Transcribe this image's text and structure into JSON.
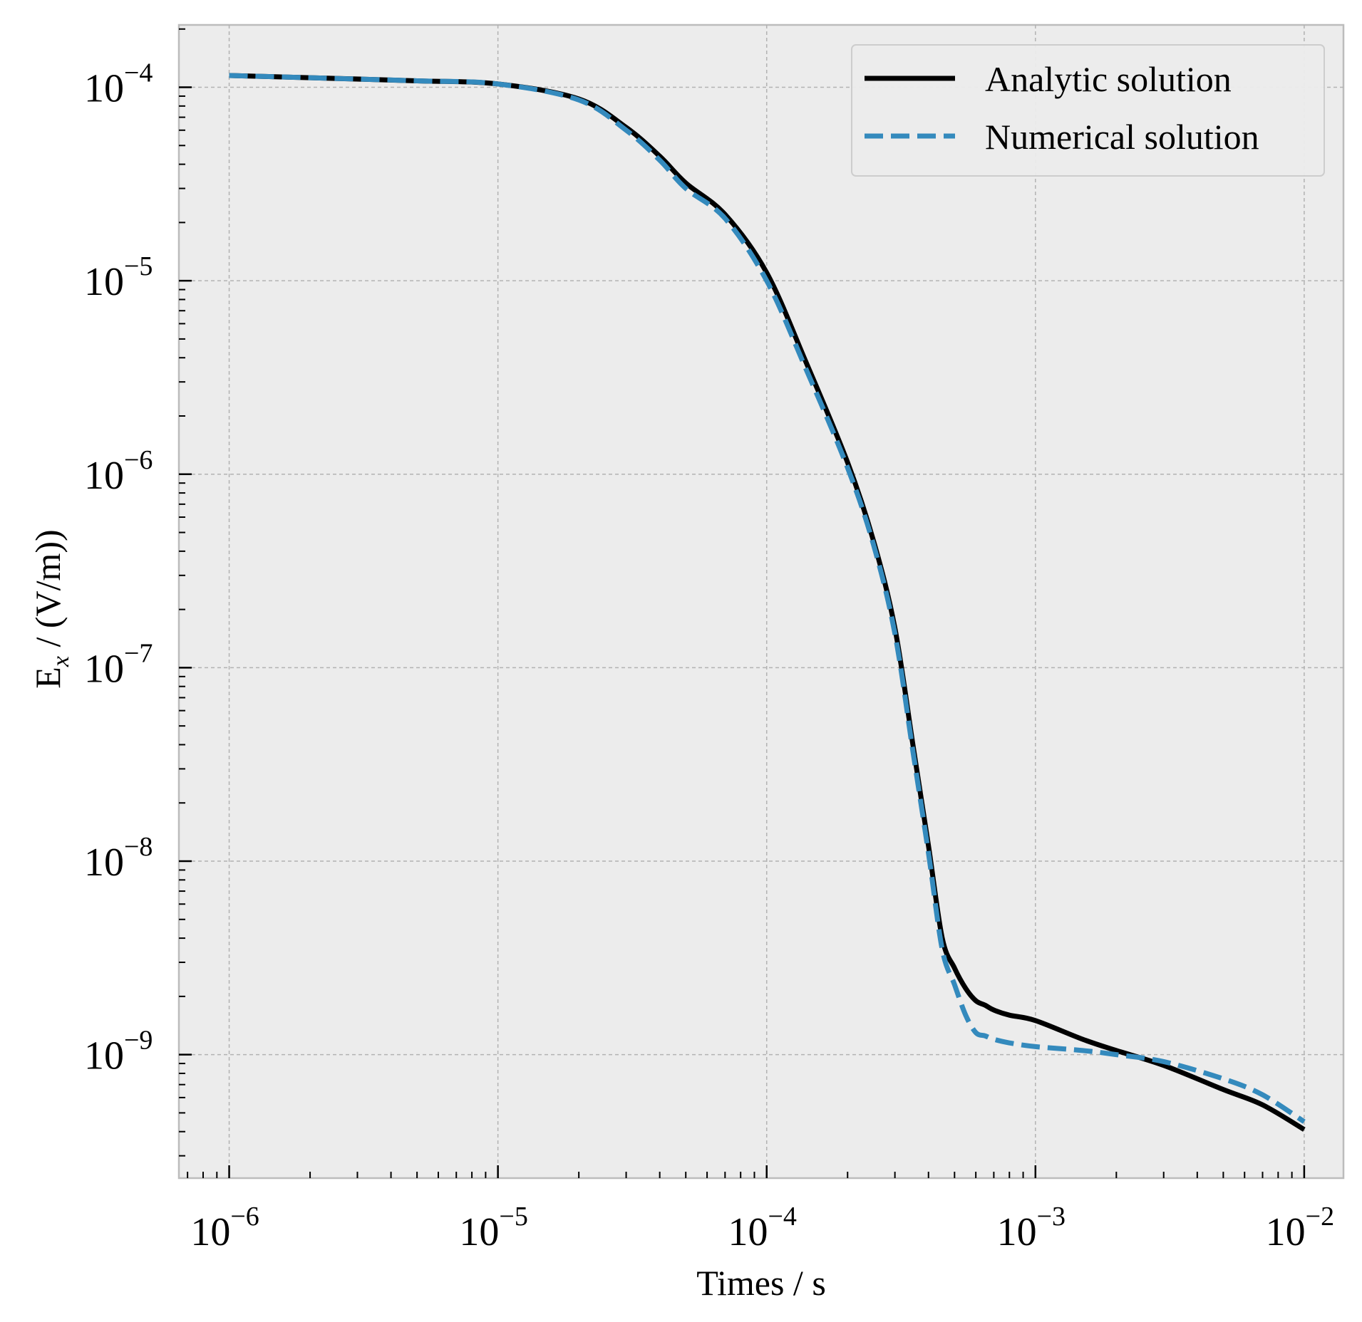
{
  "chart_data": {
    "type": "line",
    "xscale": "log",
    "yscale": "log",
    "xlim": [
      6.5e-07,
      0.014
    ],
    "ylim": [
      2.3e-10,
      0.00021
    ],
    "grid": true,
    "legend_position": "top-right",
    "xlabel_text": "Times / s",
    "ylabel_parts": {
      "main": "E",
      "sub": "x",
      "rest": " / (V/m))"
    },
    "x_ticks": [
      {
        "value": 1e-06,
        "base": "10",
        "exp": "−6"
      },
      {
        "value": 1e-05,
        "base": "10",
        "exp": "−5"
      },
      {
        "value": 0.0001,
        "base": "10",
        "exp": "−4"
      },
      {
        "value": 0.001,
        "base": "10",
        "exp": "−3"
      },
      {
        "value": 0.01,
        "base": "10",
        "exp": "−2"
      }
    ],
    "y_ticks": [
      {
        "value": 1e-09,
        "base": "10",
        "exp": "−9"
      },
      {
        "value": 1e-08,
        "base": "10",
        "exp": "−8"
      },
      {
        "value": 1e-07,
        "base": "10",
        "exp": "−7"
      },
      {
        "value": 1e-06,
        "base": "10",
        "exp": "−6"
      },
      {
        "value": 1e-05,
        "base": "10",
        "exp": "−5"
      },
      {
        "value": 0.0001,
        "base": "10",
        "exp": "−4"
      }
    ],
    "series": [
      {
        "name": "Analytic solution",
        "color": "#000000",
        "style": "solid",
        "x": [
          1e-06,
          2e-06,
          5e-06,
          1e-05,
          2e-05,
          3e-05,
          4e-05,
          5e-05,
          7e-05,
          0.0001,
          0.00014,
          0.0002,
          0.00025,
          0.0003,
          0.00035,
          0.0004,
          0.00045,
          0.0005,
          0.00055,
          0.0006,
          0.00065,
          0.0007,
          0.0008,
          0.001,
          0.0015,
          0.002,
          0.003,
          0.005,
          0.007,
          0.01
        ],
        "y": [
          0.000115,
          0.000112,
          0.000108,
          0.000104,
          8.7e-05,
          6.2e-05,
          4.4e-05,
          3.2e-05,
          2.2e-05,
          1.1e-05,
          3.8e-06,
          1.15e-06,
          4.5e-07,
          1.6e-07,
          4e-08,
          1.2e-08,
          4e-09,
          2.8e-09,
          2.2e-09,
          1.9e-09,
          1.8e-09,
          1.7e-09,
          1.6e-09,
          1.5e-09,
          1.2e-09,
          1.05e-09,
          8.8e-10,
          6.6e-10,
          5.5e-10,
          4.1e-10
        ]
      },
      {
        "name": "Numerical solution",
        "color": "#348ABD",
        "style": "dashed",
        "x": [
          1e-06,
          2e-06,
          5e-06,
          1e-05,
          2e-05,
          3e-05,
          4e-05,
          5e-05,
          7e-05,
          0.0001,
          0.00014,
          0.0002,
          0.00025,
          0.0003,
          0.00035,
          0.0004,
          0.00045,
          0.0005,
          0.00055,
          0.0006,
          0.00065,
          0.0007,
          0.0008,
          0.001,
          0.0015,
          0.002,
          0.003,
          0.005,
          0.007,
          0.01
        ],
        "y": [
          0.000115,
          0.000112,
          0.000108,
          0.000104,
          8.6e-05,
          6e-05,
          4.2e-05,
          3e-05,
          2.1e-05,
          1e-05,
          3.5e-06,
          1.08e-06,
          4.3e-07,
          1.5e-07,
          3.7e-08,
          1.1e-08,
          3.5e-09,
          2.3e-09,
          1.6e-09,
          1.3e-09,
          1.25e-09,
          1.2e-09,
          1.15e-09,
          1.1e-09,
          1.05e-09,
          1e-09,
          9.2e-10,
          7.5e-10,
          6.2e-10,
          4.5e-10
        ]
      }
    ]
  }
}
